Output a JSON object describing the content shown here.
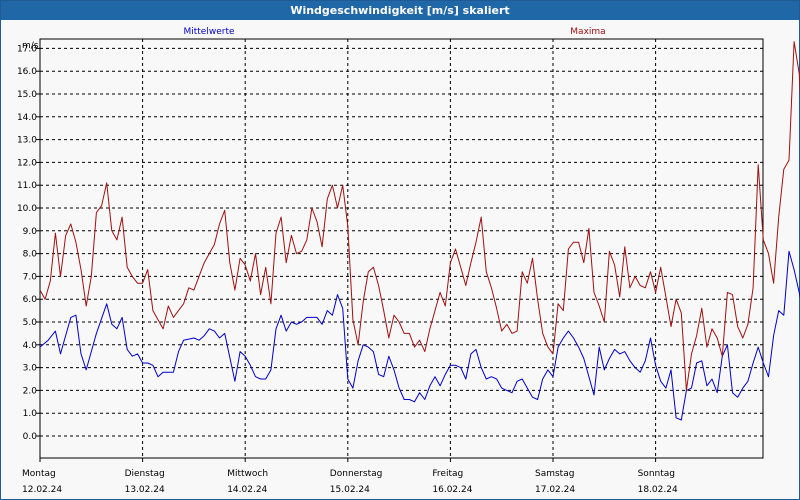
{
  "window": {
    "title": "Windgeschwindigkeit [m/s] skaliert"
  },
  "colors": {
    "background": "#f8f8f8",
    "titlebar": "#1f67a6",
    "mean_series": "#0000c8",
    "max_series": "#a01010",
    "grid": "#000000"
  },
  "chart_data": {
    "type": "line",
    "ylabel": "m/s",
    "ylim": [
      0,
      18
    ],
    "ytick_step": 1,
    "xlim": [
      0,
      7.6
    ],
    "grid": true,
    "grid_style": "dashed",
    "legend_placement": "top",
    "x_ticks": [
      {
        "day": "Montag",
        "date": "12.02.24"
      },
      {
        "day": "Dienstag",
        "date": "13.02.24"
      },
      {
        "day": "Mittwoch",
        "date": "14.02.24"
      },
      {
        "day": "Donnerstag",
        "date": "15.02.24"
      },
      {
        "day": "Freitag",
        "date": "16.02.24"
      },
      {
        "day": "Samstag",
        "date": "17.02.24"
      },
      {
        "day": "Sonntag",
        "date": "18.02.24"
      }
    ],
    "x_unit": "days since Montag 12.02.24 00:00",
    "series": [
      {
        "name": "Mittelwerte",
        "color": "#0000c8",
        "points": [
          [
            0.0,
            3.9
          ],
          [
            0.08,
            4.2
          ],
          [
            0.15,
            4.6
          ],
          [
            0.2,
            3.6
          ],
          [
            0.3,
            5.2
          ],
          [
            0.35,
            5.3
          ],
          [
            0.4,
            3.6
          ],
          [
            0.45,
            2.9
          ],
          [
            0.55,
            4.5
          ],
          [
            0.65,
            5.8
          ],
          [
            0.7,
            4.9
          ],
          [
            0.75,
            4.7
          ],
          [
            0.8,
            5.2
          ],
          [
            0.85,
            3.8
          ],
          [
            0.9,
            3.5
          ],
          [
            0.95,
            3.6
          ],
          [
            1.0,
            3.2
          ],
          [
            1.05,
            3.2
          ],
          [
            1.1,
            3.1
          ],
          [
            1.15,
            2.6
          ],
          [
            1.2,
            2.8
          ],
          [
            1.3,
            2.8
          ],
          [
            1.35,
            3.7
          ],
          [
            1.4,
            4.2
          ],
          [
            1.5,
            4.3
          ],
          [
            1.55,
            4.2
          ],
          [
            1.6,
            4.4
          ],
          [
            1.65,
            4.7
          ],
          [
            1.7,
            4.6
          ],
          [
            1.75,
            4.3
          ],
          [
            1.8,
            4.5
          ],
          [
            1.9,
            2.4
          ],
          [
            1.95,
            3.7
          ],
          [
            2.0,
            3.5
          ],
          [
            2.05,
            3.1
          ],
          [
            2.1,
            2.6
          ],
          [
            2.15,
            2.5
          ],
          [
            2.2,
            2.5
          ],
          [
            2.25,
            2.9
          ],
          [
            2.3,
            4.7
          ],
          [
            2.35,
            5.3
          ],
          [
            2.4,
            4.6
          ],
          [
            2.45,
            5.0
          ],
          [
            2.5,
            4.9
          ],
          [
            2.55,
            5.0
          ],
          [
            2.6,
            5.2
          ],
          [
            2.7,
            5.2
          ],
          [
            2.75,
            4.9
          ],
          [
            2.8,
            5.5
          ],
          [
            2.85,
            5.3
          ],
          [
            2.9,
            6.2
          ],
          [
            2.95,
            5.6
          ],
          [
            3.0,
            2.5
          ],
          [
            3.05,
            2.1
          ],
          [
            3.1,
            3.3
          ],
          [
            3.15,
            4.0
          ],
          [
            3.2,
            3.9
          ],
          [
            3.25,
            3.7
          ],
          [
            3.3,
            2.7
          ],
          [
            3.35,
            2.6
          ],
          [
            3.4,
            3.5
          ],
          [
            3.45,
            2.9
          ],
          [
            3.5,
            2.1
          ],
          [
            3.55,
            1.6
          ],
          [
            3.6,
            1.6
          ],
          [
            3.65,
            1.5
          ],
          [
            3.7,
            1.9
          ],
          [
            3.75,
            1.6
          ],
          [
            3.8,
            2.2
          ],
          [
            3.85,
            2.6
          ],
          [
            3.9,
            2.2
          ],
          [
            3.95,
            2.7
          ],
          [
            4.0,
            3.1
          ],
          [
            4.05,
            3.1
          ],
          [
            4.1,
            3.0
          ],
          [
            4.15,
            2.5
          ],
          [
            4.2,
            3.6
          ],
          [
            4.25,
            3.8
          ],
          [
            4.3,
            3.0
          ],
          [
            4.35,
            2.5
          ],
          [
            4.4,
            2.6
          ],
          [
            4.45,
            2.5
          ],
          [
            4.5,
            2.1
          ],
          [
            4.55,
            2.0
          ],
          [
            4.6,
            1.9
          ],
          [
            4.65,
            2.4
          ],
          [
            4.7,
            2.5
          ],
          [
            4.75,
            2.1
          ],
          [
            4.8,
            1.7
          ],
          [
            4.85,
            1.6
          ],
          [
            4.9,
            2.5
          ],
          [
            4.95,
            2.9
          ],
          [
            5.0,
            2.6
          ],
          [
            5.05,
            3.9
          ],
          [
            5.1,
            4.3
          ],
          [
            5.15,
            4.6
          ],
          [
            5.2,
            4.3
          ],
          [
            5.25,
            3.9
          ],
          [
            5.3,
            3.4
          ],
          [
            5.35,
            2.6
          ],
          [
            5.4,
            1.8
          ],
          [
            5.45,
            3.9
          ],
          [
            5.5,
            2.9
          ],
          [
            5.55,
            3.4
          ],
          [
            5.6,
            3.8
          ],
          [
            5.65,
            3.6
          ],
          [
            5.7,
            3.7
          ],
          [
            5.75,
            3.3
          ],
          [
            5.8,
            3.0
          ],
          [
            5.85,
            2.8
          ],
          [
            5.9,
            3.3
          ],
          [
            5.95,
            4.3
          ],
          [
            6.0,
            3.1
          ],
          [
            6.05,
            2.4
          ],
          [
            6.1,
            2.1
          ],
          [
            6.15,
            2.9
          ],
          [
            6.2,
            0.8
          ],
          [
            6.25,
            0.7
          ],
          [
            6.3,
            2.0
          ],
          [
            6.35,
            2.1
          ],
          [
            6.4,
            3.2
          ],
          [
            6.45,
            3.3
          ],
          [
            6.5,
            2.2
          ],
          [
            6.55,
            2.5
          ],
          [
            6.6,
            1.9
          ],
          [
            6.65,
            3.5
          ],
          [
            6.7,
            4.0
          ],
          [
            6.75,
            1.9
          ],
          [
            6.8,
            1.7
          ],
          [
            6.85,
            2.1
          ],
          [
            6.9,
            2.4
          ],
          [
            6.95,
            3.2
          ],
          [
            7.0,
            3.9
          ],
          [
            7.05,
            3.2
          ],
          [
            7.1,
            2.6
          ],
          [
            7.15,
            4.4
          ],
          [
            7.2,
            5.5
          ],
          [
            7.25,
            5.3
          ],
          [
            7.3,
            8.1
          ],
          [
            7.35,
            7.3
          ],
          [
            7.4,
            6.3
          ],
          [
            7.45,
            5.3
          ],
          [
            7.5,
            5.3
          ],
          [
            7.55,
            5.5
          ]
        ]
      },
      {
        "name": "Maxima",
        "color": "#a01010",
        "points": [
          [
            0.0,
            6.4
          ],
          [
            0.05,
            6.0
          ],
          [
            0.1,
            6.8
          ],
          [
            0.15,
            8.9
          ],
          [
            0.2,
            7.0
          ],
          [
            0.25,
            8.8
          ],
          [
            0.3,
            9.3
          ],
          [
            0.35,
            8.5
          ],
          [
            0.4,
            7.3
          ],
          [
            0.45,
            5.7
          ],
          [
            0.5,
            7.0
          ],
          [
            0.55,
            9.8
          ],
          [
            0.6,
            10.1
          ],
          [
            0.65,
            11.1
          ],
          [
            0.7,
            9.0
          ],
          [
            0.75,
            8.6
          ],
          [
            0.8,
            9.6
          ],
          [
            0.85,
            7.4
          ],
          [
            0.9,
            7.0
          ],
          [
            0.95,
            6.7
          ],
          [
            1.0,
            6.7
          ],
          [
            1.05,
            7.3
          ],
          [
            1.1,
            5.5
          ],
          [
            1.15,
            5.1
          ],
          [
            1.2,
            4.7
          ],
          [
            1.25,
            5.7
          ],
          [
            1.3,
            5.2
          ],
          [
            1.35,
            5.5
          ],
          [
            1.4,
            5.8
          ],
          [
            1.45,
            6.5
          ],
          [
            1.5,
            6.4
          ],
          [
            1.55,
            7.0
          ],
          [
            1.6,
            7.6
          ],
          [
            1.7,
            8.4
          ],
          [
            1.75,
            9.3
          ],
          [
            1.8,
            9.9
          ],
          [
            1.85,
            7.6
          ],
          [
            1.9,
            6.4
          ],
          [
            1.95,
            7.8
          ],
          [
            2.0,
            7.5
          ],
          [
            2.05,
            6.8
          ],
          [
            2.1,
            8.0
          ],
          [
            2.15,
            6.2
          ],
          [
            2.2,
            7.4
          ],
          [
            2.25,
            5.8
          ],
          [
            2.3,
            8.9
          ],
          [
            2.35,
            9.6
          ],
          [
            2.4,
            7.6
          ],
          [
            2.45,
            8.8
          ],
          [
            2.5,
            8.0
          ],
          [
            2.55,
            8.1
          ],
          [
            2.6,
            8.6
          ],
          [
            2.65,
            10.0
          ],
          [
            2.7,
            9.4
          ],
          [
            2.75,
            8.3
          ],
          [
            2.8,
            10.4
          ],
          [
            2.85,
            11.0
          ],
          [
            2.9,
            10.0
          ],
          [
            2.95,
            11.0
          ],
          [
            3.0,
            9.2
          ],
          [
            3.05,
            5.1
          ],
          [
            3.1,
            4.0
          ],
          [
            3.15,
            5.9
          ],
          [
            3.2,
            7.2
          ],
          [
            3.25,
            7.4
          ],
          [
            3.3,
            6.6
          ],
          [
            3.35,
            5.5
          ],
          [
            3.4,
            4.3
          ],
          [
            3.45,
            5.3
          ],
          [
            3.5,
            5.0
          ],
          [
            3.55,
            4.5
          ],
          [
            3.6,
            4.5
          ],
          [
            3.65,
            3.9
          ],
          [
            3.7,
            4.2
          ],
          [
            3.75,
            3.7
          ],
          [
            3.8,
            4.7
          ],
          [
            3.85,
            5.5
          ],
          [
            3.9,
            6.3
          ],
          [
            3.95,
            5.7
          ],
          [
            4.0,
            7.6
          ],
          [
            4.05,
            8.2
          ],
          [
            4.1,
            7.4
          ],
          [
            4.15,
            6.6
          ],
          [
            4.2,
            7.6
          ],
          [
            4.25,
            8.5
          ],
          [
            4.3,
            9.6
          ],
          [
            4.35,
            7.2
          ],
          [
            4.4,
            6.5
          ],
          [
            4.45,
            5.6
          ],
          [
            4.5,
            4.6
          ],
          [
            4.55,
            4.9
          ],
          [
            4.6,
            4.5
          ],
          [
            4.65,
            4.6
          ],
          [
            4.7,
            7.2
          ],
          [
            4.75,
            6.7
          ],
          [
            4.8,
            7.8
          ],
          [
            4.85,
            6.0
          ],
          [
            4.9,
            4.5
          ],
          [
            4.95,
            3.9
          ],
          [
            5.0,
            3.6
          ],
          [
            5.05,
            5.8
          ],
          [
            5.1,
            5.5
          ],
          [
            5.15,
            8.2
          ],
          [
            5.2,
            8.5
          ],
          [
            5.25,
            8.5
          ],
          [
            5.3,
            7.6
          ],
          [
            5.35,
            9.1
          ],
          [
            5.4,
            6.3
          ],
          [
            5.45,
            5.7
          ],
          [
            5.5,
            5.0
          ],
          [
            5.55,
            8.1
          ],
          [
            5.6,
            7.5
          ],
          [
            5.65,
            6.1
          ],
          [
            5.7,
            8.3
          ],
          [
            5.75,
            6.5
          ],
          [
            5.8,
            7.0
          ],
          [
            5.85,
            6.6
          ],
          [
            5.9,
            6.5
          ],
          [
            5.95,
            7.2
          ],
          [
            6.0,
            6.3
          ],
          [
            6.05,
            7.4
          ],
          [
            6.1,
            6.1
          ],
          [
            6.15,
            4.8
          ],
          [
            6.2,
            6.0
          ],
          [
            6.25,
            5.4
          ],
          [
            6.3,
            2.0
          ],
          [
            6.35,
            3.6
          ],
          [
            6.4,
            4.4
          ],
          [
            6.45,
            5.6
          ],
          [
            6.5,
            3.9
          ],
          [
            6.55,
            4.7
          ],
          [
            6.6,
            4.3
          ],
          [
            6.65,
            3.5
          ],
          [
            6.7,
            6.3
          ],
          [
            6.75,
            6.2
          ],
          [
            6.8,
            4.8
          ],
          [
            6.85,
            4.3
          ],
          [
            6.9,
            4.9
          ],
          [
            6.95,
            6.5
          ],
          [
            7.0,
            11.9
          ],
          [
            7.05,
            8.6
          ],
          [
            7.1,
            8.0
          ],
          [
            7.15,
            6.7
          ],
          [
            7.2,
            9.6
          ],
          [
            7.25,
            11.7
          ],
          [
            7.3,
            12.1
          ],
          [
            7.35,
            17.3
          ],
          [
            7.4,
            15.9
          ],
          [
            7.45,
            11.6
          ],
          [
            7.5,
            10.3
          ],
          [
            7.55,
            10.3
          ],
          [
            7.6,
            12.0
          ]
        ]
      }
    ]
  }
}
